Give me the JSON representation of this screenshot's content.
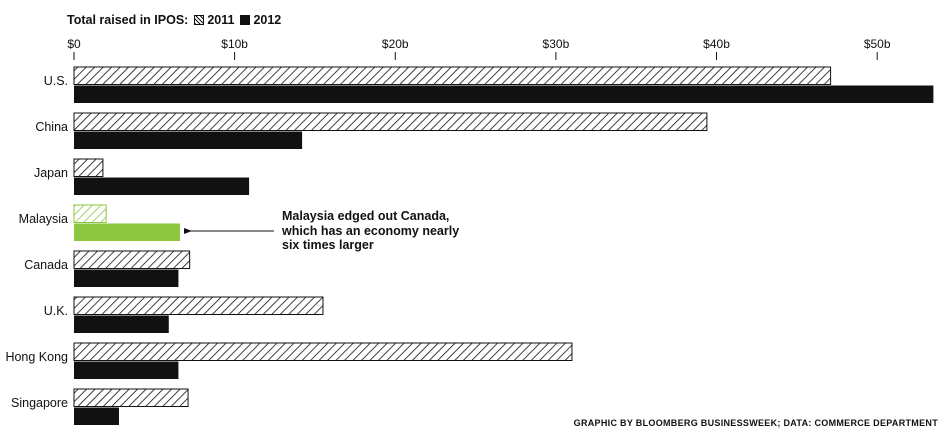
{
  "legend": {
    "title": "Total raised in IPOS:",
    "series_2011": "2011",
    "series_2012": "2012"
  },
  "annotation": {
    "lines": [
      "Malaysia edged out Canada,",
      "which has an economy nearly",
      "six times larger"
    ]
  },
  "source": "GRAPHIC BY BLOOMBERG BUSINESSWEEK; DATA: COMMERCE DEPARTMENT",
  "chart_data": {
    "type": "bar",
    "orientation": "horizontal",
    "xlim": [
      0,
      53.6
    ],
    "x_ticks": [
      0,
      10,
      20,
      30,
      40,
      50
    ],
    "x_tick_labels": [
      "$0",
      "$10b",
      "$20b",
      "$30b",
      "$40b",
      "$50b"
    ],
    "categories": [
      "U.S.",
      "China",
      "Japan",
      "Malaysia",
      "Canada",
      "U.K.",
      "Hong Kong",
      "Singapore"
    ],
    "series": [
      {
        "name": "2011",
        "style": "hatched",
        "values": [
          47.1,
          39.4,
          1.8,
          2.0,
          7.2,
          15.5,
          31.0,
          7.1
        ]
      },
      {
        "name": "2012",
        "style": "solid",
        "values": [
          53.5,
          14.2,
          10.9,
          6.6,
          6.5,
          5.9,
          6.5,
          2.8
        ]
      }
    ],
    "highlight_category": "Malaysia",
    "colors": {
      "bar": "#111111",
      "highlight": "#8dc63f",
      "hatch_bg": "#ffffff"
    },
    "grid": false
  }
}
